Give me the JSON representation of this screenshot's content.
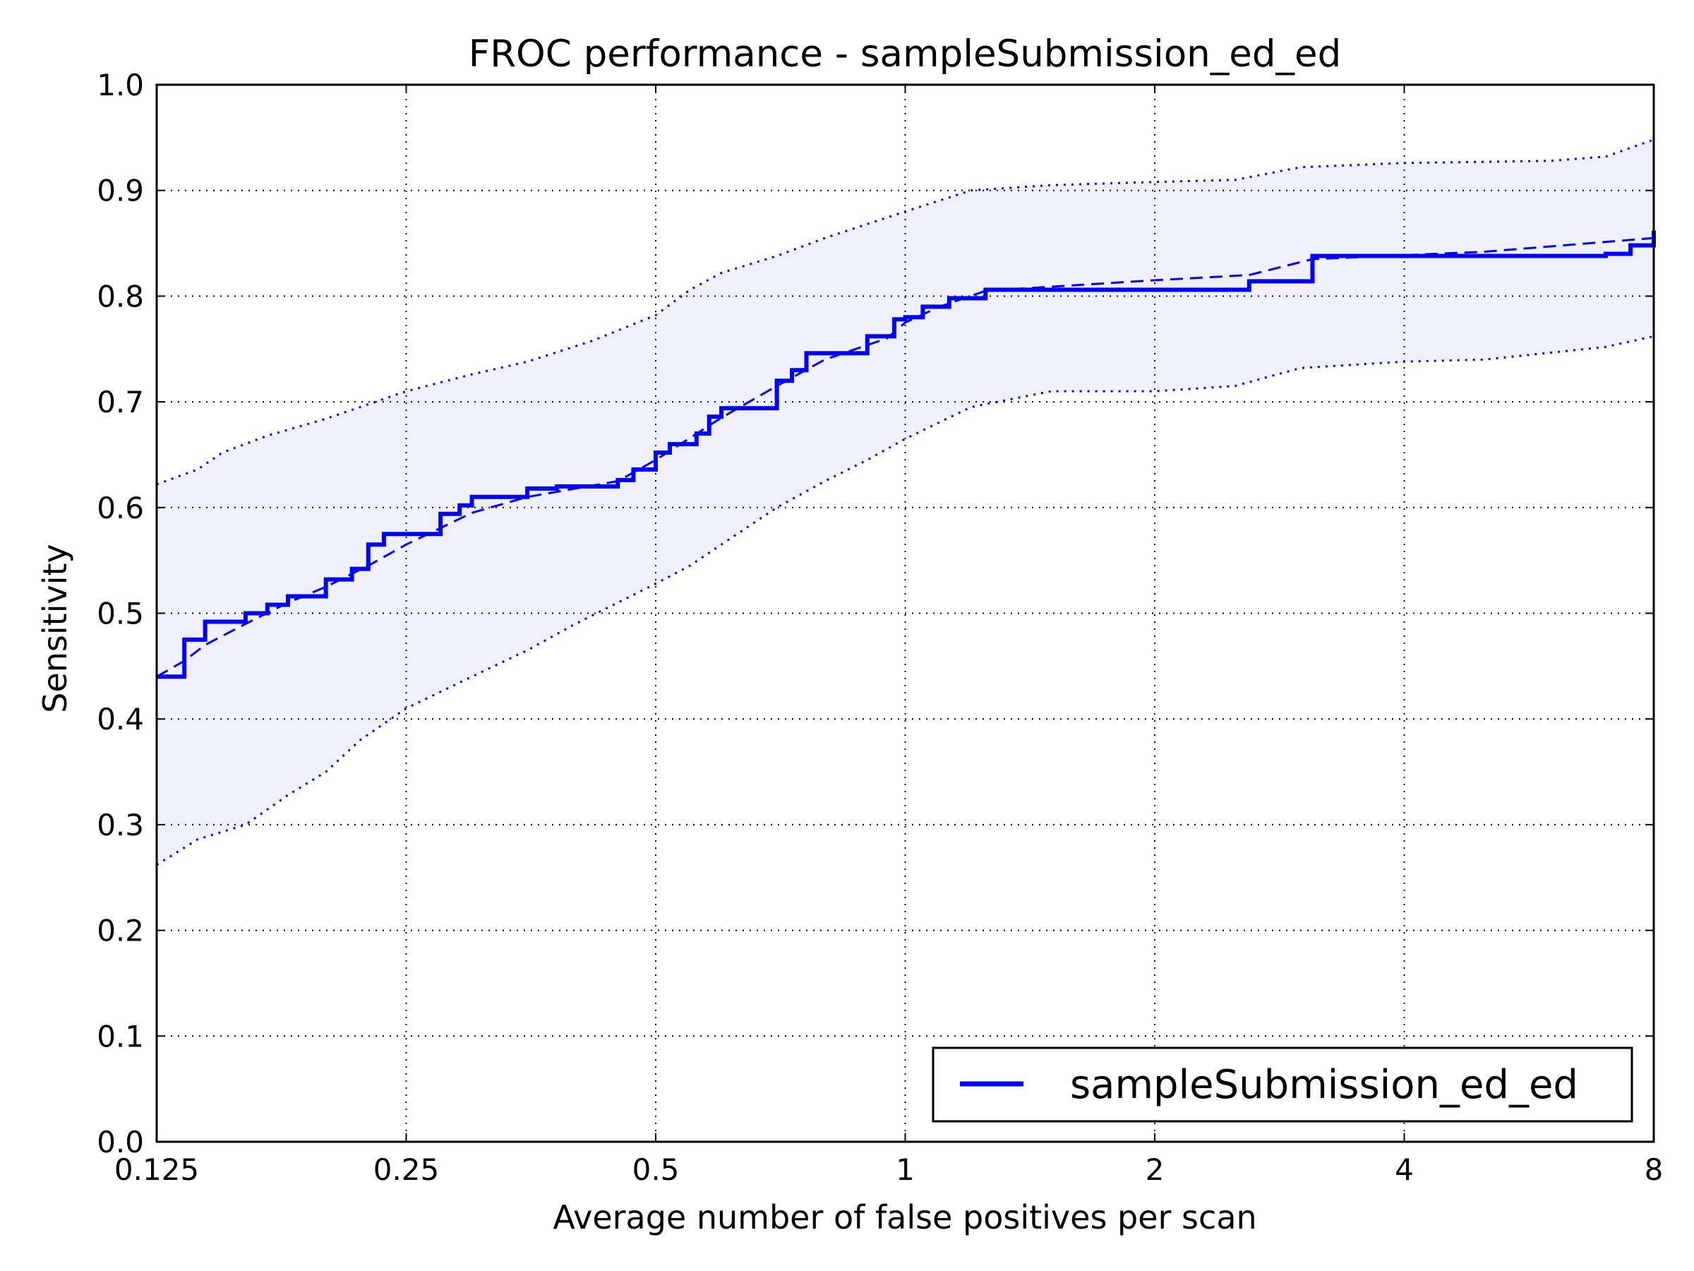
{
  "chart_data": {
    "type": "line",
    "title": "FROC performance - sampleSubmission_ed_ed",
    "xlabel": "Average number of false positives per scan",
    "ylabel": "Sensitivity",
    "xscale": "log2",
    "xlim": [
      0.125,
      8
    ],
    "ylim": [
      0.0,
      1.0
    ],
    "xticks": [
      0.125,
      0.25,
      0.5,
      1,
      2,
      4,
      8
    ],
    "xtick_labels": [
      "0.125",
      "0.25",
      "0.5",
      "1",
      "2",
      "4",
      "8"
    ],
    "yticks": [
      0.0,
      0.1,
      0.2,
      0.3,
      0.4,
      0.5,
      0.6,
      0.7,
      0.8,
      0.9,
      1.0
    ],
    "ytick_labels": [
      "0.0",
      "0.1",
      "0.2",
      "0.3",
      "0.4",
      "0.5",
      "0.6",
      "0.7",
      "0.8",
      "0.9",
      "1.0"
    ],
    "grid": true,
    "legend_position": "bottom-right",
    "colors": {
      "series": "#0000ff",
      "band_fill": "#f0f0fb"
    },
    "series": [
      {
        "name": "sampleSubmission_ed_ed",
        "style": "solid-step",
        "x": [
          0.125,
          0.135,
          0.143,
          0.16,
          0.17,
          0.18,
          0.19,
          0.2,
          0.215,
          0.225,
          0.235,
          0.25,
          0.275,
          0.29,
          0.3,
          0.35,
          0.38,
          0.45,
          0.47,
          0.5,
          0.52,
          0.56,
          0.58,
          0.6,
          0.7,
          0.73,
          0.76,
          0.9,
          0.97,
          1.0,
          1.05,
          1.13,
          1.25,
          2.6,
          3.1,
          7.0,
          7.5,
          8.0
        ],
        "y": [
          0.44,
          0.475,
          0.492,
          0.5,
          0.508,
          0.516,
          0.516,
          0.532,
          0.542,
          0.565,
          0.575,
          0.575,
          0.594,
          0.602,
          0.61,
          0.618,
          0.62,
          0.626,
          0.636,
          0.652,
          0.66,
          0.67,
          0.686,
          0.694,
          0.72,
          0.73,
          0.746,
          0.762,
          0.778,
          0.78,
          0.79,
          0.798,
          0.806,
          0.814,
          0.838,
          0.84,
          0.848,
          0.862
        ]
      },
      {
        "style": "dashed",
        "x": [
          0.125,
          0.135,
          0.143,
          0.16,
          0.18,
          0.2,
          0.225,
          0.25,
          0.3,
          0.35,
          0.45,
          0.5,
          0.6,
          0.7,
          0.8,
          0.95,
          1.0,
          1.1,
          1.25,
          2.0,
          2.6,
          3.1,
          5.0,
          8.0
        ],
        "y": [
          0.44,
          0.455,
          0.47,
          0.49,
          0.51,
          0.525,
          0.545,
          0.565,
          0.595,
          0.61,
          0.625,
          0.645,
          0.685,
          0.715,
          0.74,
          0.76,
          0.775,
          0.79,
          0.805,
          0.815,
          0.82,
          0.835,
          0.842,
          0.855
        ]
      },
      {
        "style": "dotted-upper",
        "x": [
          0.125,
          0.14,
          0.15,
          0.17,
          0.2,
          0.25,
          0.3,
          0.35,
          0.42,
          0.5,
          0.55,
          0.6,
          0.7,
          0.8,
          1.0,
          1.2,
          1.5,
          2.0,
          2.5,
          3.0,
          4.0,
          6.0,
          7.0,
          8.0
        ],
        "y": [
          0.622,
          0.636,
          0.652,
          0.668,
          0.684,
          0.71,
          0.726,
          0.738,
          0.758,
          0.782,
          0.806,
          0.822,
          0.838,
          0.855,
          0.88,
          0.9,
          0.905,
          0.908,
          0.91,
          0.922,
          0.926,
          0.928,
          0.932,
          0.948
        ]
      },
      {
        "style": "dotted-lower",
        "x": [
          0.125,
          0.14,
          0.16,
          0.18,
          0.2,
          0.22,
          0.25,
          0.3,
          0.35,
          0.4,
          0.45,
          0.5,
          0.55,
          0.6,
          0.7,
          0.8,
          0.9,
          1.0,
          1.2,
          1.5,
          2.0,
          2.5,
          3.0,
          4.0,
          5.0,
          7.0,
          8.0
        ],
        "y": [
          0.262,
          0.286,
          0.3,
          0.328,
          0.35,
          0.38,
          0.41,
          0.44,
          0.465,
          0.49,
          0.51,
          0.528,
          0.545,
          0.565,
          0.6,
          0.625,
          0.645,
          0.665,
          0.695,
          0.71,
          0.71,
          0.715,
          0.732,
          0.738,
          0.74,
          0.752,
          0.762
        ]
      }
    ]
  }
}
